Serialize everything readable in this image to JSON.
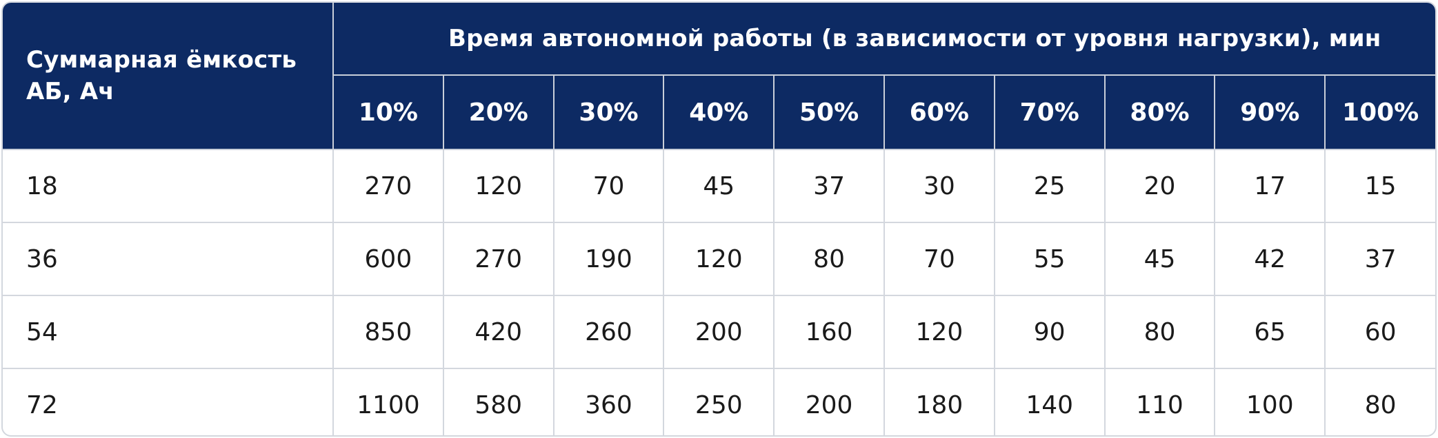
{
  "table": {
    "corner_header": "Суммарная ёмкость АБ, Ач",
    "group_header": "Время автономной работы (в зависимости от уровня нагрузки), мин",
    "load_levels": [
      "10%",
      "20%",
      "30%",
      "40%",
      "50%",
      "60%",
      "70%",
      "80%",
      "90%",
      "100%"
    ],
    "rows": [
      {
        "capacity": "18",
        "values": [
          "270",
          "120",
          "70",
          "45",
          "37",
          "30",
          "25",
          "20",
          "17",
          "15"
        ]
      },
      {
        "capacity": "36",
        "values": [
          "600",
          "270",
          "190",
          "120",
          "80",
          "70",
          "55",
          "45",
          "42",
          "37"
        ]
      },
      {
        "capacity": "54",
        "values": [
          "850",
          "420",
          "260",
          "200",
          "160",
          "120",
          "90",
          "80",
          "65",
          "60"
        ]
      },
      {
        "capacity": "72",
        "values": [
          "1100",
          "580",
          "360",
          "250",
          "200",
          "180",
          "140",
          "110",
          "100",
          "80"
        ]
      }
    ]
  },
  "colors": {
    "header_background": "#0d2a63",
    "header_text": "#ffffff",
    "grid_line": "#d3d7de",
    "body_text": "#1a1a1a"
  }
}
